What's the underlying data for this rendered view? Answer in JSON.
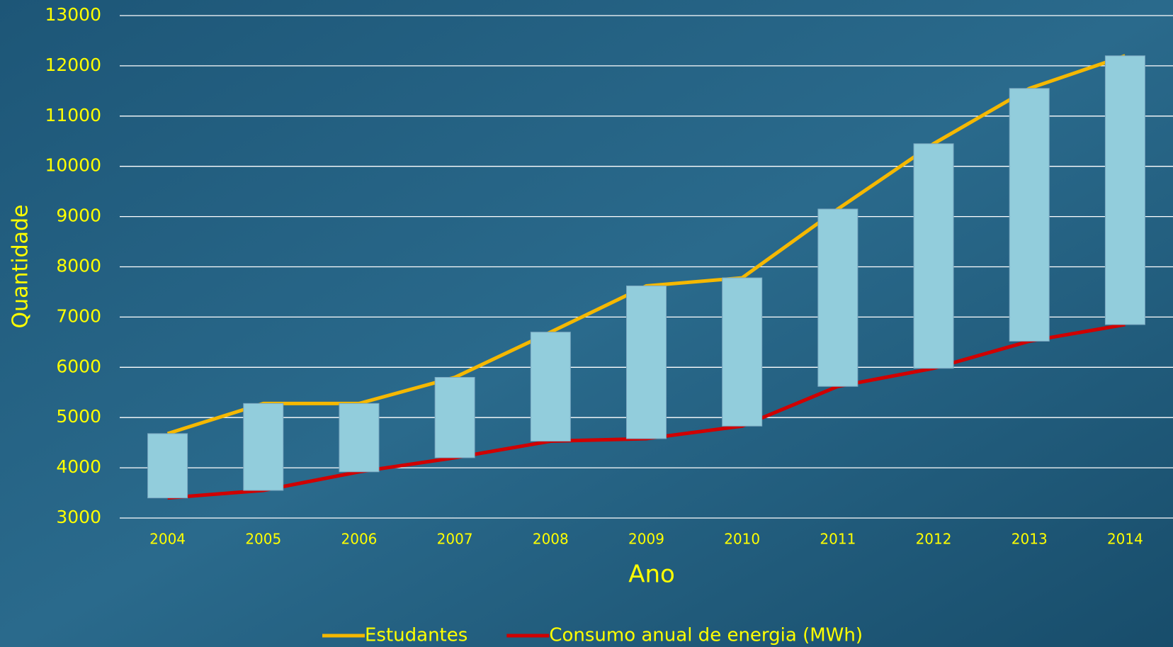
{
  "chart_data": {
    "type": "line",
    "x_label": "Ano",
    "y_label": "Quantidade",
    "categories": [
      "2004",
      "2005",
      "2006",
      "2007",
      "2008",
      "2009",
      "2010",
      "2011",
      "2012",
      "2013",
      "2014"
    ],
    "series": [
      {
        "name": "Estudantes",
        "color": "#f5b800",
        "values": [
          4680,
          5280,
          5280,
          5800,
          6700,
          7620,
          7780,
          9150,
          10450,
          11550,
          12200
        ]
      },
      {
        "name": "Consumo anual de energia (MWh)",
        "color": "#d00000",
        "values": [
          3400,
          3550,
          3920,
          4200,
          4530,
          4580,
          4830,
          5620,
          5980,
          6520,
          6850
        ]
      }
    ],
    "up_down_bars_color": "#92cddc",
    "ylim": [
      3000,
      13000
    ],
    "yticks": [
      3000,
      4000,
      5000,
      6000,
      7000,
      8000,
      9000,
      10000,
      11000,
      12000,
      13000
    ],
    "grid": true,
    "legend": "bottom"
  }
}
